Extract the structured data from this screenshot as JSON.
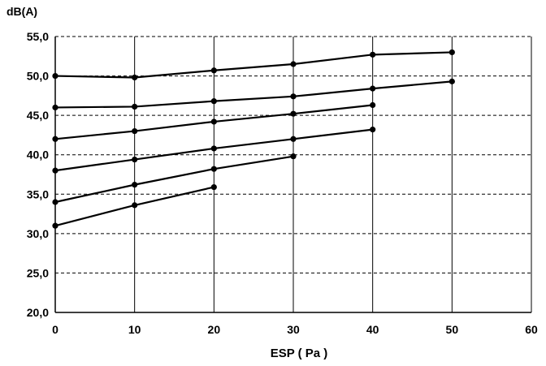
{
  "chart_data": {
    "type": "line",
    "title": "",
    "ylabel": "dB(A)",
    "xlabel": "ESP ( Pa )",
    "xlim": [
      0,
      60
    ],
    "ylim": [
      20,
      55
    ],
    "x_ticks": [
      0,
      10,
      20,
      30,
      40,
      50,
      60
    ],
    "x_tick_labels": [
      "0",
      "10",
      "20",
      "30",
      "40",
      "50",
      "60"
    ],
    "y_ticks": [
      20,
      25,
      30,
      35,
      40,
      45,
      50,
      55
    ],
    "y_tick_labels": [
      "20,0",
      "25,0",
      "30,0",
      "35,0",
      "40,0",
      "45,0",
      "50,0",
      "55,0"
    ],
    "grid": {
      "vertical": "solid",
      "horizontal": "dashed"
    },
    "legend": "none",
    "line_color": "#000000",
    "series": [
      {
        "x": [
          0,
          10,
          20,
          30,
          40,
          50
        ],
        "values": [
          50.0,
          49.8,
          50.7,
          51.5,
          52.7,
          53.0
        ]
      },
      {
        "x": [
          0,
          10,
          20,
          30,
          40,
          50
        ],
        "values": [
          46.0,
          46.1,
          46.8,
          47.4,
          48.4,
          49.3
        ]
      },
      {
        "x": [
          0,
          10,
          20,
          30,
          40
        ],
        "values": [
          42.0,
          43.0,
          44.2,
          45.2,
          46.3
        ]
      },
      {
        "x": [
          0,
          10,
          20,
          30,
          40
        ],
        "values": [
          38.0,
          39.4,
          40.8,
          42.0,
          43.2
        ]
      },
      {
        "x": [
          0,
          10,
          20,
          30
        ],
        "values": [
          34.0,
          36.2,
          38.2,
          39.8
        ]
      },
      {
        "x": [
          0,
          10,
          20
        ],
        "values": [
          31.0,
          33.6,
          35.9
        ]
      }
    ]
  }
}
